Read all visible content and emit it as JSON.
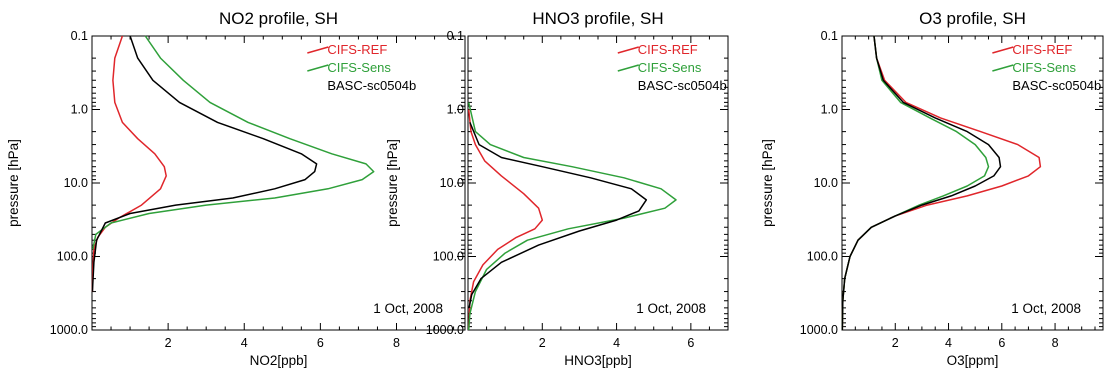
{
  "figure": {
    "background": "#ffffff"
  },
  "colors": {
    "CIFS-REF": "#e0262b",
    "CIFS-Sens": "#2fa03a",
    "BASC-sc0504b": "#000000"
  },
  "chart_data": [
    {
      "type": "line",
      "title": "NO2 profile, SH",
      "xlabel": "NO2[ppb]",
      "ylabel": "pressure [hPa]",
      "xlim": [
        0,
        9.8
      ],
      "xticks": [
        2,
        4,
        6,
        8
      ],
      "ylim": [
        1000,
        0.1
      ],
      "yscale": "log",
      "yticks": [
        0.1,
        1.0,
        10.0,
        100.0,
        1000.0
      ],
      "yticklabels": [
        "0.1",
        "1.0",
        "10.0",
        "100.0",
        "1000.0"
      ],
      "legend": [
        "CIFS-REF",
        "CIFS-Sens",
        "BASC-sc0504b"
      ],
      "annotation": "1 Oct, 2008",
      "series": [
        {
          "name": "CIFS-REF",
          "x": [
            0.8,
            0.6,
            0.55,
            0.6,
            0.8,
            1.2,
            1.65,
            1.9,
            1.95,
            1.8,
            1.3,
            0.7,
            0.35,
            0.15,
            0.05,
            0.02,
            0.01
          ],
          "y": [
            0.1,
            0.2,
            0.4,
            0.8,
            1.5,
            2.5,
            4,
            6,
            8,
            12,
            20,
            30,
            40,
            55,
            80,
            150,
            300
          ]
        },
        {
          "name": "CIFS-Sens",
          "x": [
            1.4,
            1.8,
            2.4,
            3.1,
            4.1,
            5.2,
            6.3,
            7.2,
            7.4,
            7.1,
            6.2,
            4.8,
            3.0,
            1.5,
            0.5,
            0.1,
            0.02
          ],
          "y": [
            0.1,
            0.2,
            0.4,
            0.8,
            1.5,
            2.5,
            4,
            5.5,
            7,
            9,
            12,
            16,
            20,
            26,
            35,
            50,
            80
          ]
        },
        {
          "name": "BASC-sc0504b",
          "x": [
            1.0,
            1.2,
            1.6,
            2.3,
            3.3,
            4.5,
            5.5,
            5.9,
            5.85,
            5.6,
            4.8,
            3.7,
            2.2,
            1.0,
            0.35,
            0.12,
            0.05,
            0.01
          ],
          "y": [
            0.1,
            0.2,
            0.4,
            0.8,
            1.5,
            2.5,
            4,
            5.5,
            7,
            9,
            12,
            16,
            20,
            26,
            35,
            60,
            120,
            300
          ]
        }
      ]
    },
    {
      "type": "line",
      "title": "HNO3 profile, SH",
      "xlabel": "HNO3[ppb]",
      "ylabel": "pressure [hPa]",
      "xlim": [
        0,
        7.0
      ],
      "xticks": [
        2,
        4,
        6
      ],
      "ylim": [
        1000,
        0.1
      ],
      "yscale": "log",
      "yticks": [
        0.1,
        1.0,
        10.0,
        100.0,
        1000.0
      ],
      "yticklabels": [
        "0.1",
        "1.0",
        "10.0",
        "100.0",
        "1000.0"
      ],
      "legend": [
        "CIFS-REF",
        "CIFS-Sens",
        "BASC-sc0504b"
      ],
      "annotation": "1 Oct, 2008",
      "series": [
        {
          "name": "CIFS-REF",
          "x": [
            0.02,
            0.08,
            0.2,
            0.45,
            0.9,
            1.5,
            1.9,
            2.0,
            1.8,
            1.3,
            0.8,
            0.4,
            0.15,
            0.05,
            0.02
          ],
          "y": [
            1,
            2,
            3,
            5,
            8,
            14,
            22,
            32,
            42,
            55,
            80,
            130,
            220,
            400,
            1000
          ]
        },
        {
          "name": "CIFS-Sens",
          "x": [
            0.02,
            0.2,
            0.6,
            1.5,
            2.8,
            4.2,
            5.2,
            5.6,
            5.3,
            4.2,
            2.7,
            1.6,
            1.0,
            0.5,
            0.2,
            0.05,
            0.02
          ],
          "y": [
            0.8,
            2,
            3,
            4.5,
            6,
            8.5,
            12,
            17,
            22,
            30,
            42,
            60,
            90,
            150,
            300,
            600,
            1000
          ]
        },
        {
          "name": "BASC-sc0504b",
          "x": [
            0.05,
            0.3,
            0.9,
            2.0,
            3.3,
            4.4,
            4.8,
            4.6,
            4.0,
            3.0,
            1.9,
            0.9,
            0.35,
            0.1,
            0.03
          ],
          "y": [
            1.5,
            3,
            4.5,
            6,
            8.5,
            12,
            17,
            24,
            32,
            45,
            70,
            120,
            200,
            330,
            500
          ]
        }
      ]
    },
    {
      "type": "line",
      "title": "O3 profile, SH",
      "xlabel": "O3[ppm]",
      "ylabel": "pressure [hPa]",
      "xlim": [
        0,
        9.8
      ],
      "xticks": [
        2,
        4,
        6,
        8
      ],
      "ylim": [
        1000,
        0.1
      ],
      "yscale": "log",
      "yticks": [
        0.1,
        1.0,
        10.0,
        100.0,
        1000.0
      ],
      "yticklabels": [
        "0.1",
        "1.0",
        "10.0",
        "100.0",
        "1000.0"
      ],
      "legend": [
        "CIFS-REF",
        "CIFS-Sens",
        "BASC-sc0504b"
      ],
      "annotation": "1 Oct, 2008",
      "series": [
        {
          "name": "CIFS-REF",
          "x": [
            1.2,
            1.3,
            1.6,
            2.4,
            3.7,
            5.2,
            6.6,
            7.4,
            7.45,
            7.0,
            6.0,
            4.7,
            3.2,
            2.0,
            1.1,
            0.6,
            0.3,
            0.1,
            0.03,
            0.01
          ],
          "y": [
            0.1,
            0.2,
            0.4,
            0.8,
            1.3,
            2,
            3,
            4.5,
            6,
            8,
            11,
            15,
            20,
            28,
            40,
            60,
            100,
            200,
            400,
            1000
          ]
        },
        {
          "name": "CIFS-Sens",
          "x": [
            1.2,
            1.3,
            1.5,
            2.2,
            3.3,
            4.3,
            5.0,
            5.4,
            5.5,
            5.35,
            4.7,
            3.8,
            2.9,
            2.0,
            1.1,
            0.6,
            0.3,
            0.1,
            0.03,
            0.01
          ],
          "y": [
            0.1,
            0.2,
            0.4,
            0.8,
            1.3,
            2,
            3,
            4.5,
            6,
            8,
            11,
            15,
            20,
            28,
            40,
            60,
            100,
            200,
            400,
            1000
          ]
        },
        {
          "name": "BASC-sc0504b",
          "x": [
            1.2,
            1.3,
            1.55,
            2.3,
            3.5,
            4.7,
            5.5,
            5.9,
            5.95,
            5.7,
            5.0,
            4.1,
            3.0,
            2.0,
            1.1,
            0.6,
            0.3,
            0.1,
            0.03,
            0.01
          ],
          "y": [
            0.1,
            0.2,
            0.4,
            0.8,
            1.3,
            2,
            3,
            4.5,
            6,
            8,
            11,
            15,
            20,
            28,
            40,
            60,
            100,
            200,
            400,
            1000
          ]
        }
      ]
    }
  ]
}
